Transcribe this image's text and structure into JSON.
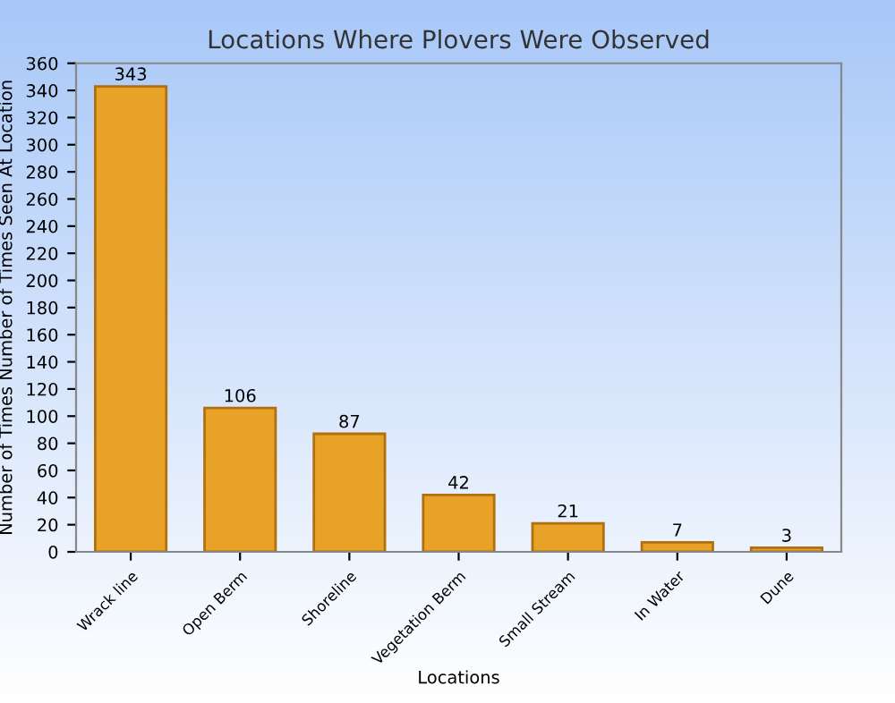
{
  "chart_data": {
    "type": "bar",
    "title": "Locations Where Plovers Were Observed",
    "xlabel": "Locations",
    "ylabel": "Number of Times Number of Times Seen At Location",
    "categories": [
      "Wrack line",
      "Open Berm",
      "Shoreline",
      "Vegetation Berm",
      "Small Stream",
      "In Water",
      "Dune"
    ],
    "values": [
      343,
      106,
      87,
      42,
      21,
      7,
      3
    ],
    "color": "#e8a227",
    "ylim": [
      0,
      360
    ],
    "yticks": [
      0,
      20,
      40,
      60,
      80,
      100,
      120,
      140,
      160,
      180,
      200,
      220,
      240,
      260,
      280,
      300,
      320,
      340,
      360
    ],
    "grid": false,
    "data_labels": true
  }
}
